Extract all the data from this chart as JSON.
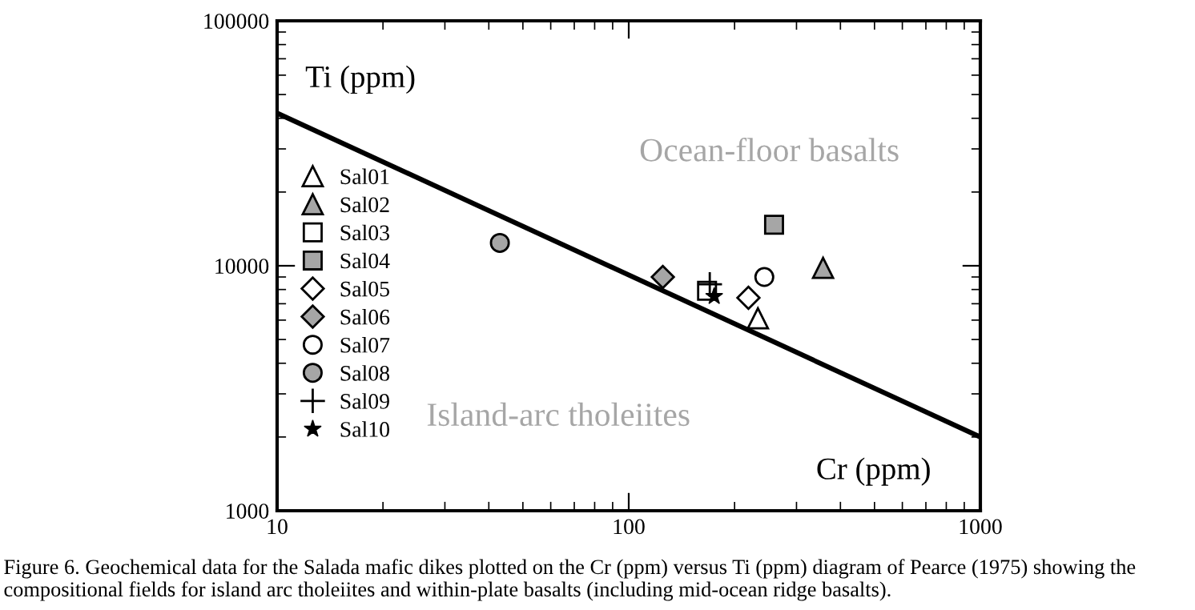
{
  "chart_data": {
    "type": "scatter",
    "xlabel": "Cr (ppm)",
    "ylabel": "Ti (ppm)",
    "log": "xy",
    "grid": false,
    "legend": "left",
    "xlim": [
      10,
      1000
    ],
    "ylim": [
      1000,
      100000
    ],
    "xticks": [
      10,
      100,
      1000
    ],
    "yticks": [
      1000,
      10000,
      100000
    ],
    "series": [
      {
        "name": "Sal01",
        "marker": "triangle",
        "color": "#ffffff",
        "x": [
          233
        ],
        "values": [
          6100
        ]
      },
      {
        "name": "Sal02",
        "marker": "triangle",
        "color": "#a6a6a6",
        "x": [
          357
        ],
        "values": [
          9800
        ]
      },
      {
        "name": "Sal03",
        "marker": "square",
        "color": "#ffffff",
        "x": [
          167
        ],
        "values": [
          7900
        ]
      },
      {
        "name": "Sal04",
        "marker": "square",
        "color": "#a6a6a6",
        "x": [
          259
        ],
        "values": [
          14700
        ]
      },
      {
        "name": "Sal05",
        "marker": "diamond",
        "color": "#ffffff",
        "x": [
          219
        ],
        "values": [
          7400
        ]
      },
      {
        "name": "Sal06",
        "marker": "diamond",
        "color": "#a6a6a6",
        "x": [
          125
        ],
        "values": [
          9000
        ]
      },
      {
        "name": "Sal07",
        "marker": "circle",
        "color": "#ffffff",
        "x": [
          243
        ],
        "values": [
          9000
        ]
      },
      {
        "name": "Sal08",
        "marker": "circle",
        "color": "#a6a6a6",
        "x": [
          43
        ],
        "values": [
          12400
        ]
      },
      {
        "name": "Sal09",
        "marker": "cross",
        "color": "#000000",
        "x": [
          170
        ],
        "values": [
          8400
        ]
      },
      {
        "name": "Sal10",
        "marker": "star",
        "color": "#000000",
        "x": [
          175
        ],
        "values": [
          7500
        ]
      },
      {
        "type": "line",
        "color": "#000000",
        "x": [
          10,
          1000
        ],
        "values": [
          42000,
          2000
        ]
      }
    ],
    "annotations": [
      "Ocean-floor basalts",
      "Island-arc tholeiites",
      "Figure 6. Geochemical data for the Salada mafic dikes plotted on the Cr (ppm) versus Ti (ppm) diagram of Pearce (1975) showing the compositional fields for island arc tholeiites and within-plate basalts (including mid-ocean ridge basalts)."
    ]
  }
}
